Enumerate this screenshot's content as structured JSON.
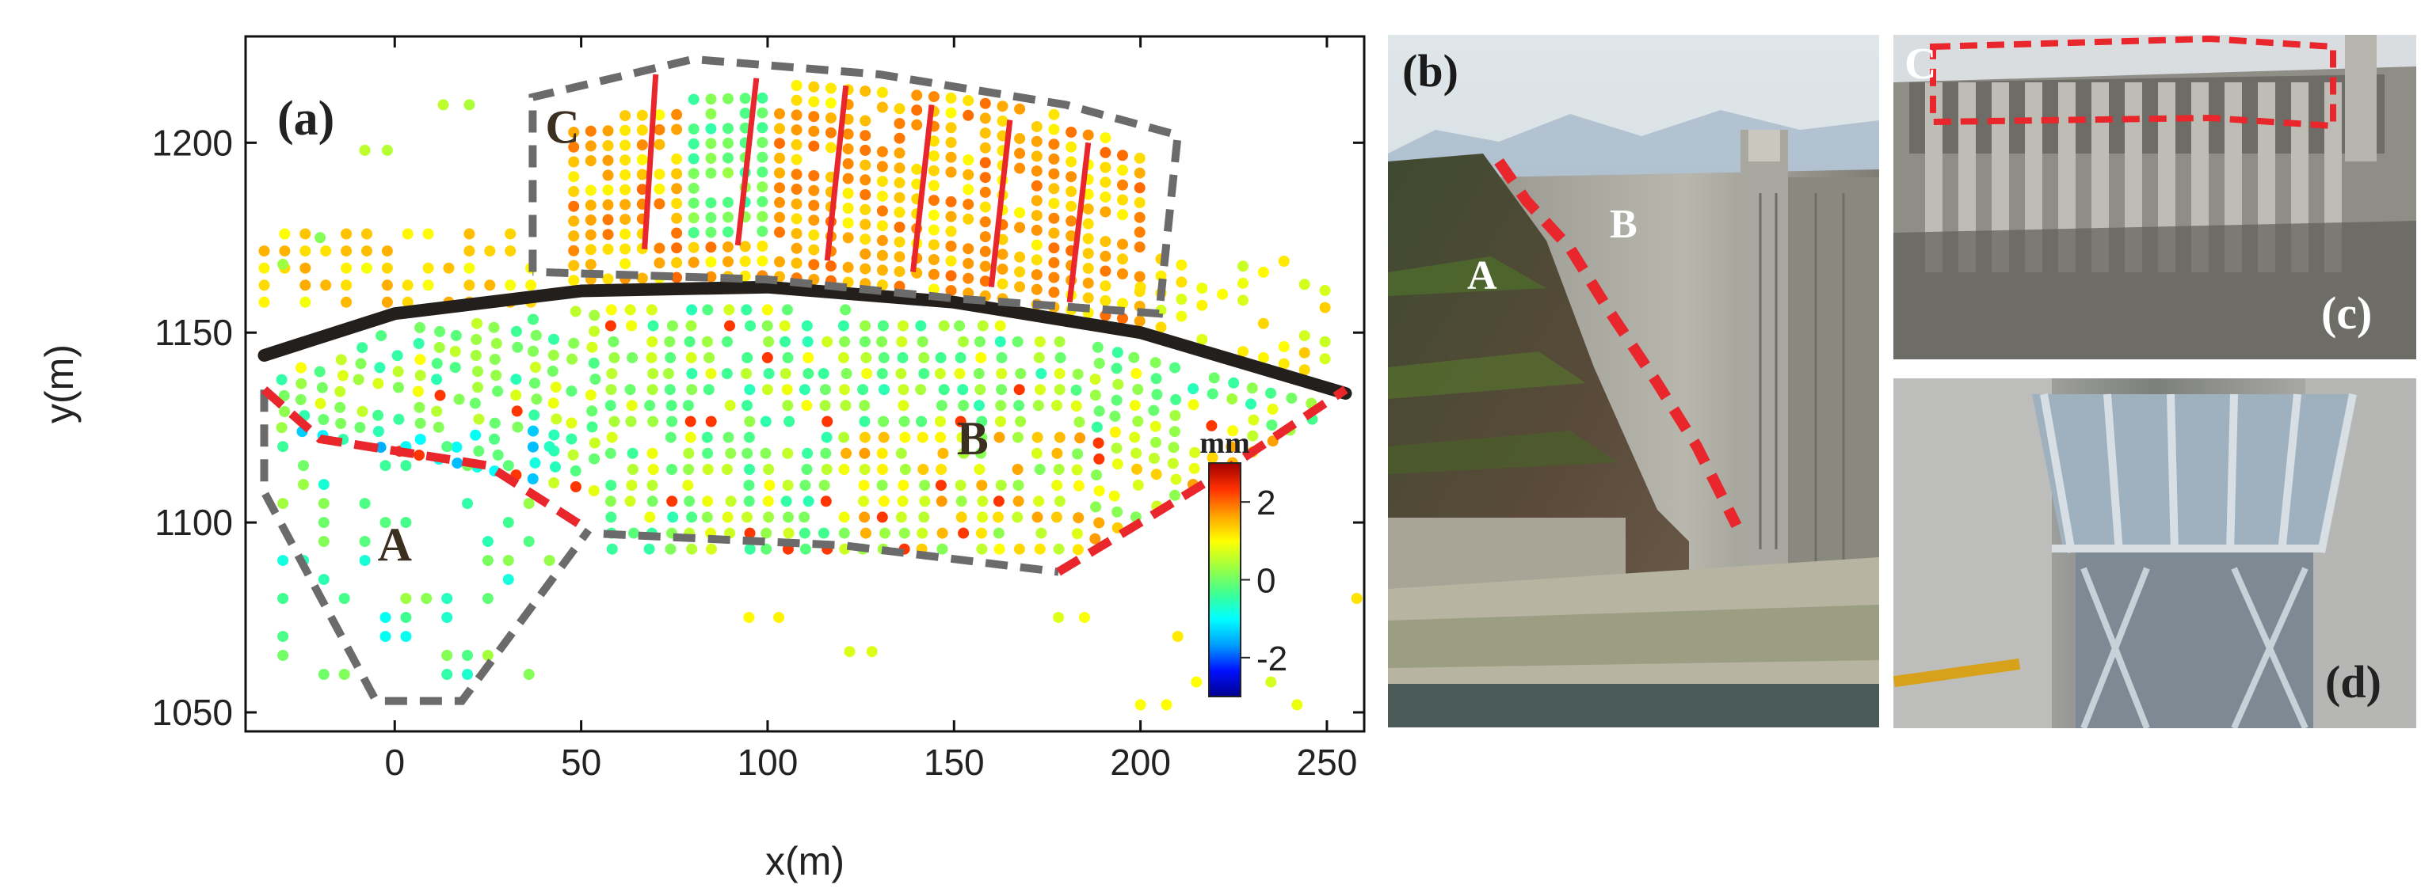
{
  "chart_data": {
    "type": "scatter",
    "panel_label": "(a)",
    "xlabel": "x(m)",
    "ylabel": "y(m)",
    "xlim": [
      -40,
      260
    ],
    "ylim": [
      1045,
      1228
    ],
    "x_ticks": [
      0,
      50,
      100,
      150,
      200,
      250
    ],
    "y_ticks": [
      1050,
      1100,
      1150,
      1200
    ],
    "colorbar": {
      "unit": "mm",
      "range": [
        -3,
        3
      ],
      "ticks": [
        2,
        0,
        -2
      ],
      "colors": [
        "#00008f",
        "#0010ff",
        "#00a0ff",
        "#00ffff",
        "#40ff90",
        "#a0ff40",
        "#ffff00",
        "#ffa000",
        "#ff3000",
        "#a00000"
      ]
    },
    "region_labels": [
      {
        "text": "A",
        "x": 0,
        "y": 1090
      },
      {
        "text": "B",
        "x": 155,
        "y": 1118
      },
      {
        "text": "C",
        "x": 45,
        "y": 1200
      }
    ],
    "dam_crest_axis": [
      [
        -35,
        1144
      ],
      [
        0,
        1155
      ],
      [
        50,
        1161
      ],
      [
        100,
        1162
      ],
      [
        150,
        1158
      ],
      [
        200,
        1150
      ],
      [
        255,
        1134
      ]
    ],
    "region_A_boundary": [
      [
        -35,
        1135
      ],
      [
        -35,
        1108
      ],
      [
        -5,
        1053
      ],
      [
        18,
        1053
      ],
      [
        52,
        1098
      ]
    ],
    "region_C_boundary": [
      [
        37,
        1166
      ],
      [
        37,
        1212
      ],
      [
        80,
        1222
      ],
      [
        130,
        1218
      ],
      [
        180,
        1210
      ],
      [
        210,
        1202
      ],
      [
        205,
        1155
      ],
      [
        150,
        1159
      ],
      [
        100,
        1164
      ],
      [
        37,
        1166
      ]
    ],
    "region_B_boundary": [
      [
        56,
        1097
      ],
      [
        120,
        1094
      ],
      [
        178,
        1087
      ]
    ],
    "left_abutment_boundary": [
      [
        -35,
        1135
      ],
      [
        -20,
        1122
      ],
      [
        25,
        1115
      ],
      [
        52,
        1098
      ]
    ],
    "right_abutment_boundary": [
      [
        178,
        1087
      ],
      [
        200,
        1100
      ],
      [
        220,
        1112
      ],
      [
        255,
        1135
      ]
    ],
    "red_segments": [
      [
        [
          67,
          1172
        ],
        [
          70,
          1218
        ]
      ],
      [
        [
          92,
          1173
        ],
        [
          97,
          1217
        ]
      ],
      [
        [
          116,
          1169
        ],
        [
          121,
          1215
        ]
      ],
      [
        [
          139,
          1166
        ],
        [
          144,
          1210
        ]
      ],
      [
        [
          160,
          1162
        ],
        [
          165,
          1206
        ]
      ],
      [
        [
          181,
          1158
        ],
        [
          186,
          1200
        ]
      ]
    ]
  },
  "photos": {
    "b": {
      "label": "(b)",
      "region_a": "A",
      "region_b": "B"
    },
    "c": {
      "label": "(c)",
      "region_c": "C"
    },
    "d": {
      "label": "(d)"
    }
  }
}
